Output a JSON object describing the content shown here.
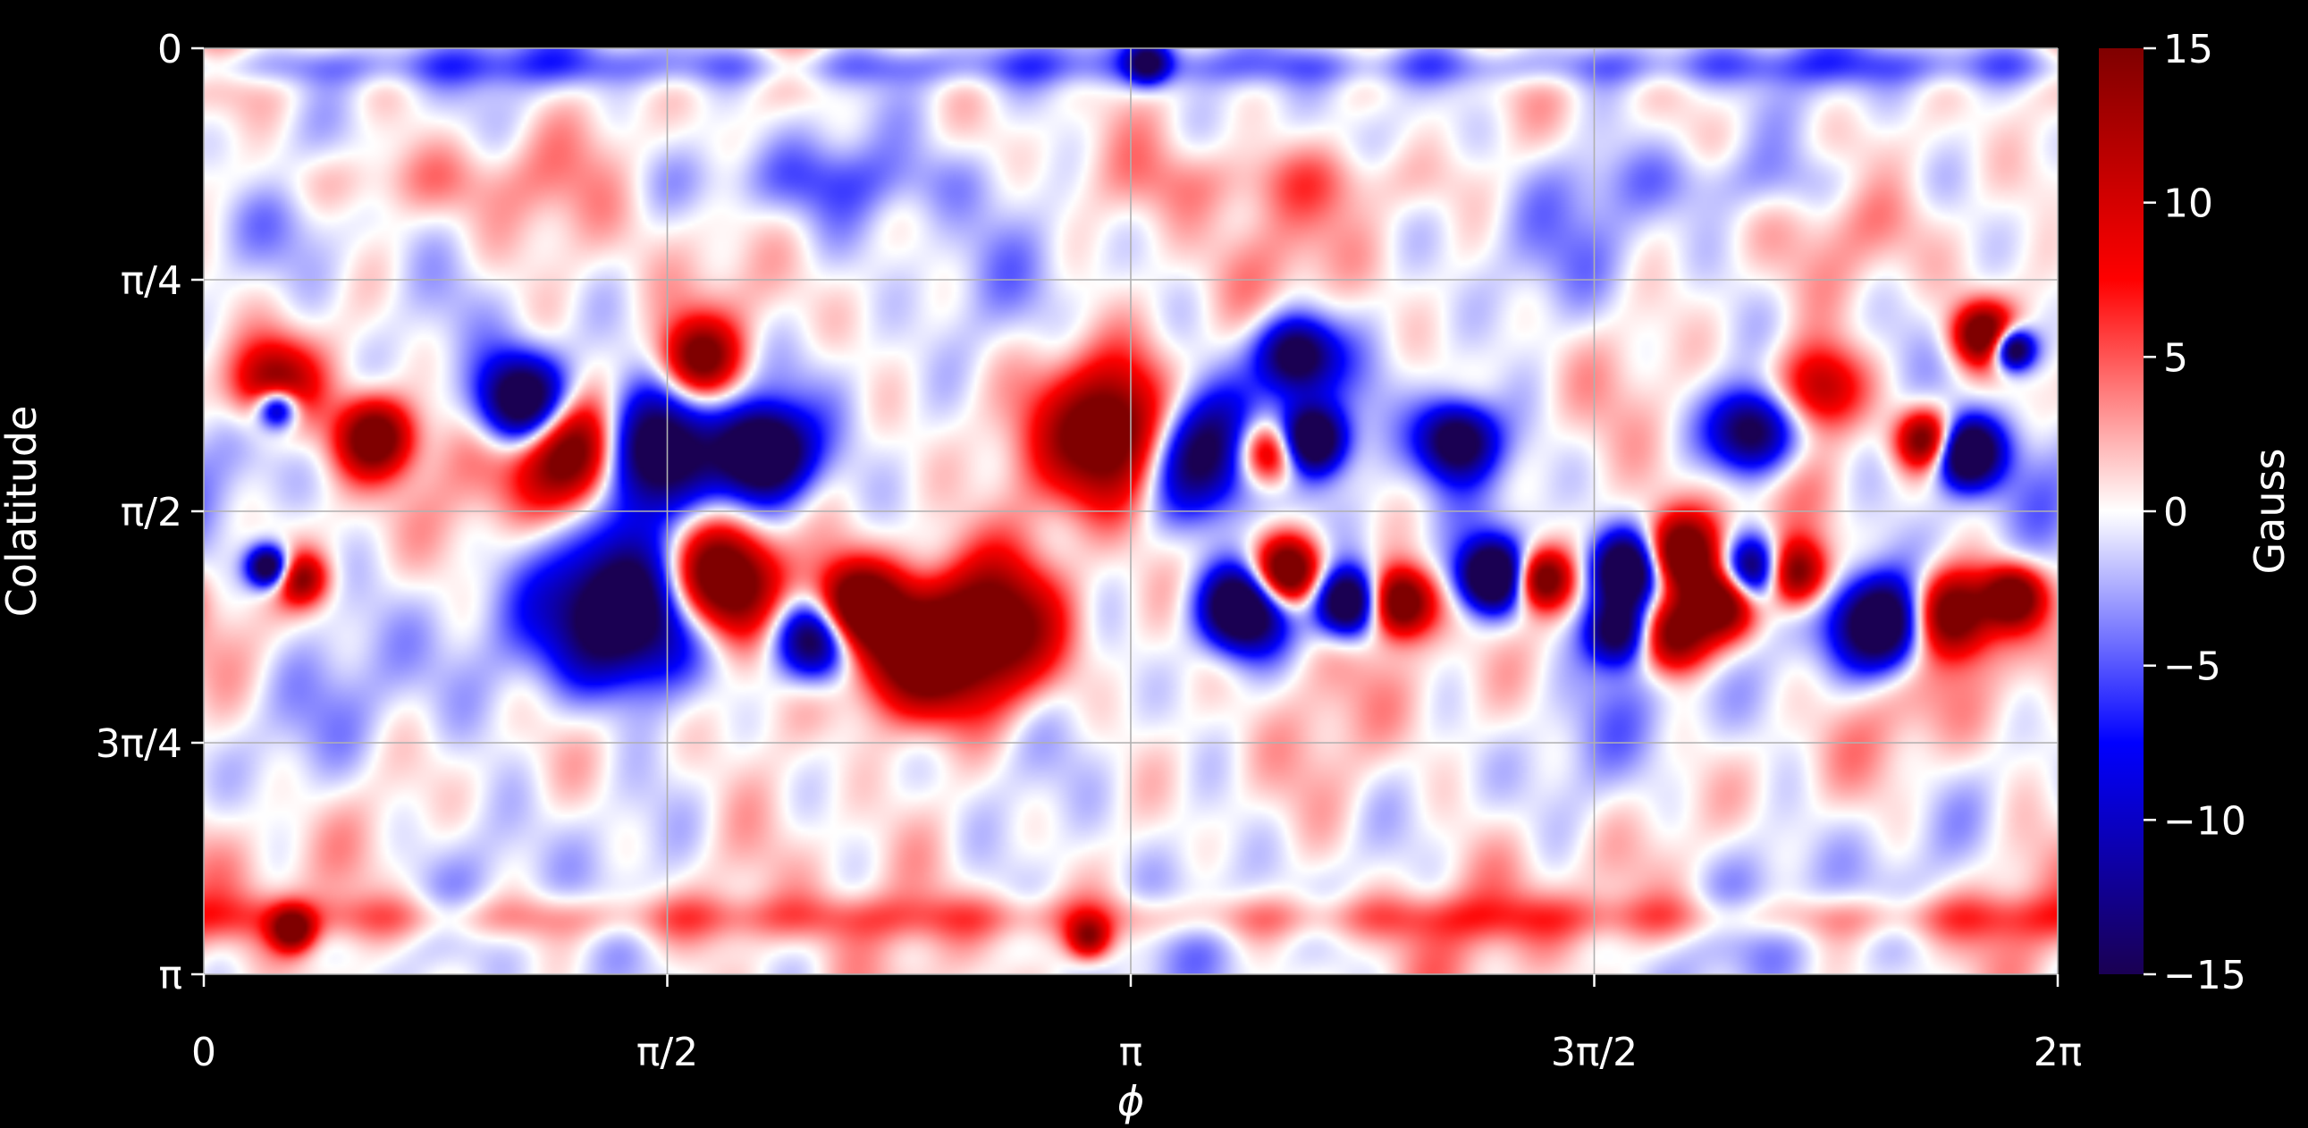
{
  "chart_data": {
    "type": "heatmap",
    "title": "",
    "xlabel": "ϕ",
    "ylabel": "Colatitude",
    "x_range": [
      0,
      6.2832
    ],
    "y_range": [
      0,
      3.1416
    ],
    "y_inverted": true,
    "grid": true,
    "x_ticks": [
      {
        "value": 0,
        "label": "0"
      },
      {
        "value": 1.5708,
        "label": "π/2"
      },
      {
        "value": 3.1416,
        "label": "π"
      },
      {
        "value": 4.7124,
        "label": "3π/2"
      },
      {
        "value": 6.2832,
        "label": "2π"
      }
    ],
    "y_ticks": [
      {
        "value": 0,
        "label": "0"
      },
      {
        "value": 0.7854,
        "label": "π/4"
      },
      {
        "value": 1.5708,
        "label": "π/2"
      },
      {
        "value": 2.3562,
        "label": "3π/4"
      },
      {
        "value": 3.1416,
        "label": "π"
      }
    ],
    "colormap": "seismic",
    "colormap_stops": [
      "#1a0052",
      "#0000ff",
      "#ffffff",
      "#ff0000",
      "#7f0000"
    ],
    "colorbar": {
      "label": "Gauss",
      "range": [
        -15,
        15
      ],
      "ticks": [
        {
          "value": 15,
          "label": "15"
        },
        {
          "value": 10,
          "label": "10"
        },
        {
          "value": 5,
          "label": "5"
        },
        {
          "value": 0,
          "label": "0"
        },
        {
          "value": -5,
          "label": "−5"
        },
        {
          "value": -10,
          "label": "−10"
        },
        {
          "value": -15,
          "label": "−15"
        }
      ]
    },
    "features": [
      {
        "phi": 0.23,
        "theta": 1.14,
        "value": 10,
        "s": 0.1
      },
      {
        "phi": 0.25,
        "theta": 1.22,
        "value": -12,
        "s": 0.05
      },
      {
        "phi": 0.58,
        "theta": 1.32,
        "value": 12,
        "s": 0.09
      },
      {
        "phi": 1.08,
        "theta": 1.2,
        "value": -15,
        "s": 0.11
      },
      {
        "phi": 1.27,
        "theta": 1.37,
        "value": 15,
        "s": 0.13
      },
      {
        "phi": 1.5,
        "theta": 1.37,
        "value": -15,
        "s": 0.14
      },
      {
        "phi": 1.68,
        "theta": 1.05,
        "value": 10,
        "s": 0.09
      },
      {
        "phi": 1.9,
        "theta": 1.37,
        "value": -14,
        "s": 0.1
      },
      {
        "phi": 3.12,
        "theta": 1.32,
        "value": 15,
        "s": 0.16
      },
      {
        "phi": 3.35,
        "theta": 1.37,
        "value": -15,
        "s": 0.15
      },
      {
        "phi": 3.62,
        "theta": 1.37,
        "value": 12,
        "s": 0.08
      },
      {
        "phi": 3.75,
        "theta": 1.33,
        "value": -14,
        "s": 0.08
      },
      {
        "phi": 3.7,
        "theta": 1.04,
        "value": -12,
        "s": 0.09
      },
      {
        "phi": 4.25,
        "theta": 1.33,
        "value": -12,
        "s": 0.09
      },
      {
        "phi": 5.25,
        "theta": 1.3,
        "value": -12,
        "s": 0.1
      },
      {
        "phi": 5.48,
        "theta": 1.15,
        "value": 8,
        "s": 0.1
      },
      {
        "phi": 5.84,
        "theta": 1.33,
        "value": 12,
        "s": 0.07
      },
      {
        "phi": 5.97,
        "theta": 1.37,
        "value": -15,
        "s": 0.08
      },
      {
        "phi": 6.13,
        "theta": 1.02,
        "value": -14,
        "s": 0.05
      },
      {
        "phi": 6.03,
        "theta": 0.97,
        "value": 12,
        "s": 0.07
      },
      {
        "phi": 0.22,
        "theta": 1.76,
        "value": -13,
        "s": 0.05
      },
      {
        "phi": 0.33,
        "theta": 1.8,
        "value": 8,
        "s": 0.06
      },
      {
        "phi": 1.43,
        "theta": 1.92,
        "value": -15,
        "s": 0.18
      },
      {
        "phi": 1.75,
        "theta": 1.8,
        "value": 15,
        "s": 0.13
      },
      {
        "phi": 2.08,
        "theta": 2.0,
        "value": -14,
        "s": 0.1
      },
      {
        "phi": 2.2,
        "theta": 1.9,
        "value": 14,
        "s": 0.1
      },
      {
        "phi": 2.4,
        "theta": 2.05,
        "value": 12,
        "s": 0.15
      },
      {
        "phi": 2.68,
        "theta": 1.97,
        "value": 12,
        "s": 0.17
      },
      {
        "phi": 3.52,
        "theta": 1.9,
        "value": -15,
        "s": 0.1
      },
      {
        "phi": 3.67,
        "theta": 1.78,
        "value": 14,
        "s": 0.08
      },
      {
        "phi": 3.88,
        "theta": 1.88,
        "value": -15,
        "s": 0.08
      },
      {
        "phi": 4.05,
        "theta": 1.88,
        "value": 14,
        "s": 0.08
      },
      {
        "phi": 4.37,
        "theta": 1.79,
        "value": -15,
        "s": 0.08
      },
      {
        "phi": 4.53,
        "theta": 1.8,
        "value": 12,
        "s": 0.07
      },
      {
        "phi": 4.83,
        "theta": 1.77,
        "value": -15,
        "s": 0.09
      },
      {
        "phi": 4.8,
        "theta": 1.98,
        "value": -12,
        "s": 0.08
      },
      {
        "phi": 5.0,
        "theta": 1.72,
        "value": 14,
        "s": 0.09
      },
      {
        "phi": 4.98,
        "theta": 1.99,
        "value": 13,
        "s": 0.09
      },
      {
        "phi": 5.14,
        "theta": 1.88,
        "value": 12,
        "s": 0.08
      },
      {
        "phi": 5.26,
        "theta": 1.77,
        "value": -15,
        "s": 0.08
      },
      {
        "phi": 5.38,
        "theta": 1.78,
        "value": 14,
        "s": 0.08
      },
      {
        "phi": 5.7,
        "theta": 1.95,
        "value": -15,
        "s": 0.11
      },
      {
        "phi": 5.92,
        "theta": 1.92,
        "value": 13,
        "s": 0.1
      },
      {
        "phi": 6.13,
        "theta": 1.86,
        "value": 12,
        "s": 0.07
      },
      {
        "phi": 3.2,
        "theta": 0.05,
        "value": -8,
        "s": 0.05
      },
      {
        "phi": 3.0,
        "theta": 3.02,
        "value": 8,
        "s": 0.05
      },
      {
        "phi": 0.3,
        "theta": 2.99,
        "value": 10,
        "s": 0.05
      }
    ]
  }
}
